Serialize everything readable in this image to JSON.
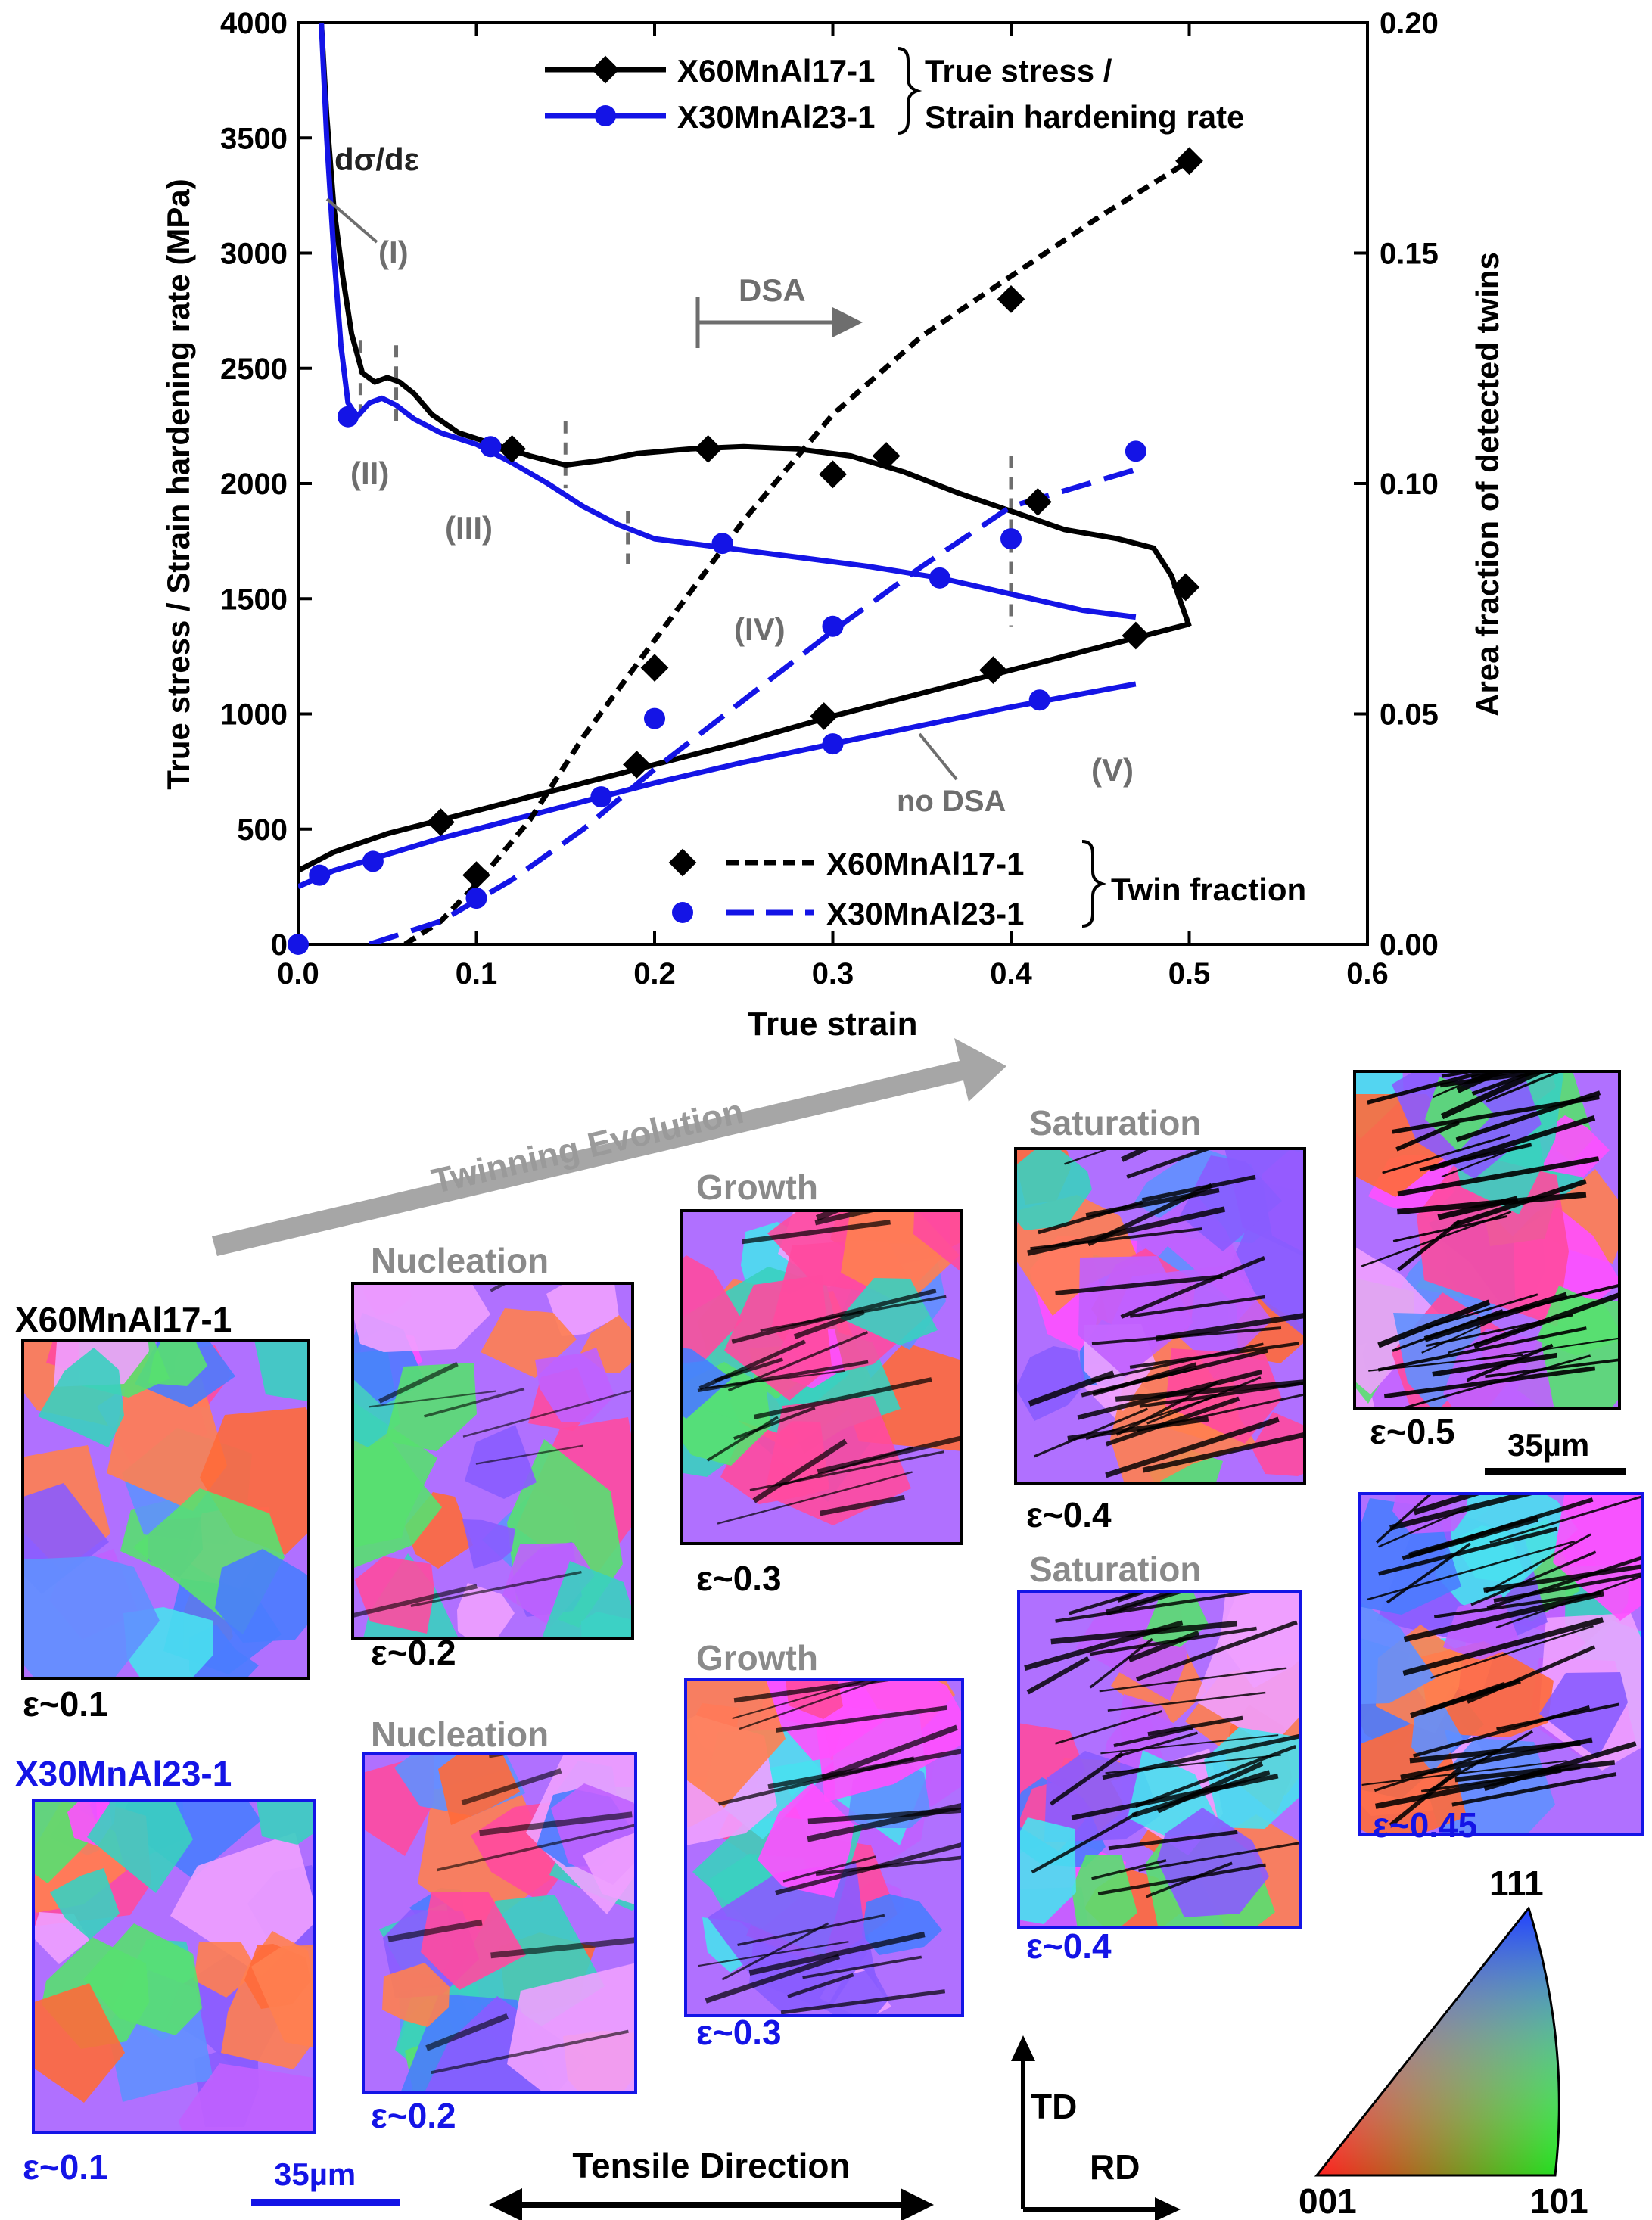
{
  "colors": {
    "x60": "#000000",
    "x30": "#1414e6",
    "annot": "#6e6e6e",
    "evo_arrow": "#a6a6a6"
  },
  "chart_data": {
    "type": "line",
    "xlabel": "True strain",
    "ylabel": "True stress / Strain hardening rate (MPa)",
    "y2label": "Area fraction of detected twins",
    "xlim": [
      0.0,
      0.6
    ],
    "ylim": [
      0,
      4000
    ],
    "y2lim": [
      0.0,
      0.2
    ],
    "x_ticks": [
      "0.0",
      "0.1",
      "0.2",
      "0.3",
      "0.4",
      "0.5",
      "0.6"
    ],
    "y_ticks": [
      "0",
      "500",
      "1000",
      "1500",
      "2000",
      "2500",
      "3000",
      "3500",
      "4000"
    ],
    "y2_ticks": [
      "0.00",
      "0.05",
      "0.10",
      "0.15",
      "0.20"
    ],
    "legend_top": {
      "entries": [
        "X60MnAl17-1",
        "X30MnAl23-1"
      ],
      "brace_label_1": "True stress /",
      "brace_label_2": "Strain hardening rate"
    },
    "legend_bottom": {
      "entries": [
        "X60MnAl17-1",
        "X30MnAl23-1"
      ],
      "brace_label": "Twin fraction"
    },
    "annotations": {
      "dsde": "dσ/dε",
      "stage1": "(I)",
      "stage2": "(II)",
      "stage3": "(III)",
      "stage4": "(IV)",
      "stage5": "(V)",
      "dsa": "DSA",
      "no_dsa": "no DSA"
    },
    "stage_markers_x": [
      0.035,
      0.055,
      0.15,
      0.185,
      0.4
    ],
    "dsa_arrow_x": [
      0.225,
      0.32
    ],
    "series": [
      {
        "name": "X60MnAl17-1 true stress",
        "material": "x60",
        "axis": "left",
        "style": "solid",
        "x": [
          0.0,
          0.02,
          0.05,
          0.08,
          0.12,
          0.16,
          0.2,
          0.25,
          0.3,
          0.35,
          0.4,
          0.45,
          0.5
        ],
        "y": [
          320,
          400,
          480,
          540,
          620,
          700,
          780,
          880,
          990,
          1090,
          1190,
          1290,
          1390
        ],
        "marker_x": [
          0.08,
          0.19,
          0.295,
          0.39,
          0.47
        ],
        "marker_y": [
          530,
          780,
          990,
          1190,
          1340
        ]
      },
      {
        "name": "X30MnAl23-1 true stress",
        "material": "x30",
        "axis": "left",
        "style": "solid",
        "x": [
          0.0,
          0.02,
          0.05,
          0.08,
          0.12,
          0.16,
          0.2,
          0.25,
          0.3,
          0.35,
          0.4,
          0.47
        ],
        "y": [
          250,
          320,
          390,
          460,
          540,
          620,
          700,
          790,
          870,
          950,
          1030,
          1130
        ],
        "marker_x": [
          0.012,
          0.042,
          0.17,
          0.3,
          0.416
        ],
        "marker_y": [
          300,
          360,
          640,
          870,
          1060
        ]
      },
      {
        "name": "X60MnAl17-1 strain hardening rate",
        "material": "x60",
        "axis": "left",
        "style": "solid",
        "x": [
          0.013,
          0.016,
          0.02,
          0.025,
          0.03,
          0.036,
          0.043,
          0.05,
          0.057,
          0.065,
          0.075,
          0.09,
          0.11,
          0.13,
          0.15,
          0.17,
          0.19,
          0.22,
          0.25,
          0.28,
          0.31,
          0.34,
          0.37,
          0.4,
          0.43,
          0.46,
          0.48,
          0.49,
          0.5
        ],
        "y": [
          4000,
          3600,
          3200,
          2900,
          2650,
          2480,
          2440,
          2460,
          2440,
          2390,
          2300,
          2220,
          2170,
          2120,
          2080,
          2100,
          2130,
          2150,
          2160,
          2150,
          2120,
          2050,
          1960,
          1880,
          1800,
          1760,
          1720,
          1600,
          1380
        ],
        "marker_x": [
          0.12,
          0.23,
          0.33,
          0.415,
          0.498
        ],
        "marker_y": [
          2150,
          2150,
          2120,
          1920,
          1550
        ]
      },
      {
        "name": "X30MnAl23-1 strain hardening rate",
        "material": "x30",
        "axis": "left",
        "style": "solid",
        "x": [
          0.013,
          0.016,
          0.02,
          0.024,
          0.028,
          0.033,
          0.04,
          0.047,
          0.055,
          0.065,
          0.08,
          0.1,
          0.12,
          0.14,
          0.16,
          0.18,
          0.2,
          0.24,
          0.28,
          0.32,
          0.36,
          0.4,
          0.44,
          0.47
        ],
        "y": [
          4000,
          3500,
          3000,
          2600,
          2350,
          2290,
          2350,
          2370,
          2340,
          2280,
          2220,
          2170,
          2090,
          2000,
          1900,
          1820,
          1760,
          1720,
          1680,
          1640,
          1590,
          1520,
          1450,
          1420
        ],
        "marker_x": [
          0.028,
          0.108,
          0.238,
          0.36
        ],
        "marker_y": [
          2290,
          2160,
          1740,
          1590
        ]
      },
      {
        "name": "X60MnAl17-1 twin fraction",
        "material": "x60",
        "axis": "right",
        "style": "dotted",
        "x": [
          0.06,
          0.08,
          0.1,
          0.13,
          0.16,
          0.2,
          0.25,
          0.3,
          0.35,
          0.4,
          0.45,
          0.5
        ],
        "y": [
          0.0,
          0.005,
          0.013,
          0.027,
          0.045,
          0.066,
          0.092,
          0.115,
          0.132,
          0.145,
          0.158,
          0.17
        ],
        "marker_x": [
          0.1,
          0.2,
          0.3,
          0.4,
          0.5
        ],
        "marker_y": [
          0.015,
          0.06,
          0.102,
          0.14,
          0.17
        ]
      },
      {
        "name": "X30MnAl23-1 twin fraction",
        "material": "x30",
        "axis": "right",
        "style": "dashed",
        "x": [
          0.04,
          0.08,
          0.12,
          0.16,
          0.2,
          0.25,
          0.3,
          0.35,
          0.4,
          0.47
        ],
        "y": [
          0.0,
          0.005,
          0.014,
          0.025,
          0.038,
          0.053,
          0.068,
          0.082,
          0.095,
          0.103
        ],
        "marker_x": [
          0.0,
          0.1,
          0.2,
          0.3,
          0.4,
          0.47
        ],
        "marker_y": [
          0.0,
          0.01,
          0.049,
          0.069,
          0.088,
          0.107
        ]
      }
    ]
  },
  "micrographs": {
    "evolution_label": "Twinning Evolution",
    "x60_label": "X60MnAl17-1",
    "x30_label": "X30MnAl23-1",
    "stage_labels": {
      "nucleation": "Nucleation",
      "growth": "Growth",
      "saturation": "Saturation"
    },
    "x60_strains": [
      "ε~0.1",
      "ε~0.2",
      "ε~0.3",
      "ε~0.4",
      "ε~0.5"
    ],
    "x30_strains": [
      "ε~0.1",
      "ε~0.2",
      "ε~0.3",
      "ε~0.4",
      "ε~0.45"
    ],
    "scale_bar": "35µm",
    "tensile_direction": "Tensile Direction",
    "td": "TD",
    "rd": "RD",
    "ipf": {
      "top": "111",
      "left": "001",
      "right": "101"
    }
  }
}
